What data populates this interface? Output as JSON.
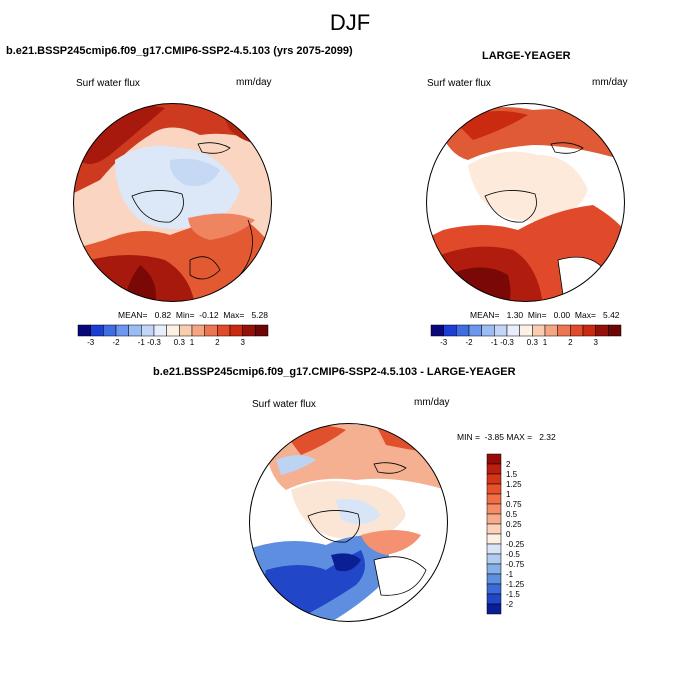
{
  "figure": {
    "title": "DJF",
    "panels": [
      {
        "case": "b.e21.BSSP245cmip6.f09_g17.CMIP6-SSP2-4.5.103 (yrs 2075-2099)",
        "variable": "Surf water flux",
        "units": "mm/day",
        "stats_text": "MEAN=   0.82  Min=  -0.12  Max=   5.28",
        "mean": 0.82,
        "min": -0.12,
        "max": 5.28
      },
      {
        "case": "LARGE-YEAGER",
        "variable": "Surf water flux",
        "units": "mm/day",
        "stats_text": "MEAN=   1.30  Min=   0.00  Max=   5.42",
        "mean": 1.3,
        "min": 0.0,
        "max": 5.42
      },
      {
        "case": "b.e21.BSSP245cmip6.f09_g17.CMIP6-SSP2-4.5.103 - LARGE-YEAGER",
        "variable": "Surf water flux",
        "units": "mm/day",
        "stats_text": "MIN =  -3.85 MAX =   2.32",
        "min": -3.85,
        "max": 2.32
      }
    ],
    "horizontal_colorbar": {
      "labels": [
        "-3",
        "-2",
        "-1",
        "-0.3",
        "0.3",
        "1",
        "2",
        "3"
      ],
      "colors": [
        "#08087a",
        "#1c3ed4",
        "#3f6de2",
        "#6d97ee",
        "#9bbcf4",
        "#c4d6f7",
        "#e8eefa",
        "#fdf1e6",
        "#f9cdb0",
        "#f5a582",
        "#ee7552",
        "#e14a2a",
        "#c92a10",
        "#96100a",
        "#6d0606"
      ]
    },
    "vertical_colorbar": {
      "labels": [
        "2",
        "1.5",
        "1.25",
        "1",
        "0.75",
        "0.5",
        "0.25",
        "0",
        "-0.25",
        "-0.5",
        "-0.75",
        "-1",
        "-1.25",
        "-1.5",
        "-2"
      ],
      "colors": [
        "#980b09",
        "#bb1e0f",
        "#d63416",
        "#e9512c",
        "#f16f47",
        "#f48c66",
        "#f6ac8c",
        "#fad2b9",
        "#fbf0e3",
        "#d7e5f7",
        "#b0ccf0",
        "#86aee8",
        "#5d8ee0",
        "#3a6bd9",
        "#2146c8",
        "#0a1f93"
      ]
    }
  }
}
